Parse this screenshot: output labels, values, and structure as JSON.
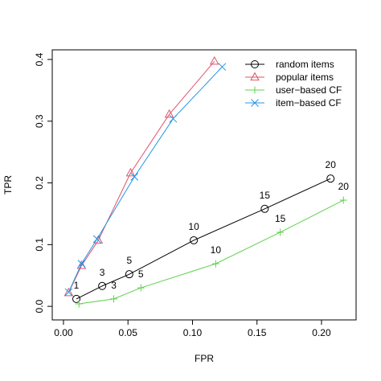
{
  "chart_data": {
    "type": "line",
    "xlabel": "FPR",
    "ylabel": "TPR",
    "xlim": [
      -0.0087,
      0.2268
    ],
    "ylim": [
      -0.022,
      0.4156
    ],
    "xticks": [
      {
        "value": 0,
        "label": "0.00"
      },
      {
        "value": 0.05,
        "label": "0.05"
      },
      {
        "value": 0.1,
        "label": "0.10"
      },
      {
        "value": 0.15,
        "label": "0.15"
      },
      {
        "value": 0.2,
        "label": "0.20"
      }
    ],
    "yticks": [
      {
        "value": 0,
        "label": "0.0"
      },
      {
        "value": 0.1,
        "label": "0.1"
      },
      {
        "value": 0.2,
        "label": "0.2"
      },
      {
        "value": 0.3,
        "label": "0.3"
      },
      {
        "value": 0.4,
        "label": "0.4"
      }
    ],
    "legend": "topright",
    "series": [
      {
        "name": "random items",
        "color": "#000000",
        "marker": "circle",
        "x": [
          0.01,
          0.03,
          0.051,
          0.101,
          0.156,
          0.207
        ],
        "values": [
          0.012,
          0.033,
          0.052,
          0.107,
          0.158,
          0.207
        ],
        "labels": [
          "1",
          "3",
          "5",
          "10",
          "15",
          "20"
        ]
      },
      {
        "name": "popular items",
        "color": "#df536b",
        "marker": "triangle",
        "x": [
          0.004,
          0.014,
          0.027,
          0.052,
          0.082,
          0.117
        ],
        "values": [
          0.022,
          0.066,
          0.107,
          0.216,
          0.311,
          0.397
        ]
      },
      {
        "name": "user−based CF",
        "color": "#61d04f",
        "marker": "plus",
        "x": [
          0.012,
          0.039,
          0.06,
          0.118,
          0.168,
          0.217
        ],
        "values": [
          0.004,
          0.012,
          0.03,
          0.069,
          0.12,
          0.172
        ],
        "labels": [
          null,
          "3",
          "5",
          "10",
          "15",
          "20"
        ]
      },
      {
        "name": "item−based CF",
        "color": "#2297e6",
        "marker": "cross",
        "x": [
          0.004,
          0.014,
          0.026,
          0.055,
          0.085,
          0.123
        ],
        "values": [
          0.023,
          0.069,
          0.109,
          0.21,
          0.304,
          0.388
        ]
      }
    ]
  }
}
